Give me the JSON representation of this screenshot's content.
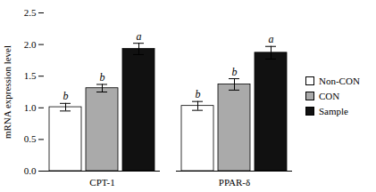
{
  "chart_data": {
    "type": "bar",
    "categories": [
      "CPT-1",
      "PPAR-δ"
    ],
    "series": [
      {
        "name": "Non-CON",
        "color": "white",
        "values": [
          1.01,
          1.03
        ],
        "errors": [
          0.06,
          0.07
        ],
        "letters": [
          "b",
          "b"
        ]
      },
      {
        "name": "CON",
        "color": "#aaaaaa",
        "values": [
          1.31,
          1.37
        ],
        "errors": [
          0.06,
          0.09
        ],
        "letters": [
          "b",
          "b"
        ]
      },
      {
        "name": "Sample",
        "color": "#111111",
        "values": [
          1.93,
          1.87
        ],
        "errors": [
          0.09,
          0.1
        ],
        "letters": [
          "a",
          "a"
        ]
      }
    ],
    "ylabel": "mRNA expression level",
    "ylim": [
      0,
      2.5
    ],
    "yticks": [
      {
        "value": 0,
        "label": "0.0"
      },
      {
        "value": 0.5,
        "label": "0.5"
      },
      {
        "value": 1.0,
        "label": "1.0"
      },
      {
        "value": 1.5,
        "label": "1.5"
      },
      {
        "value": 2.0,
        "label": "2.0"
      },
      {
        "value": 2.5,
        "label": "2.5"
      }
    ],
    "legend": "right",
    "grid": false
  }
}
